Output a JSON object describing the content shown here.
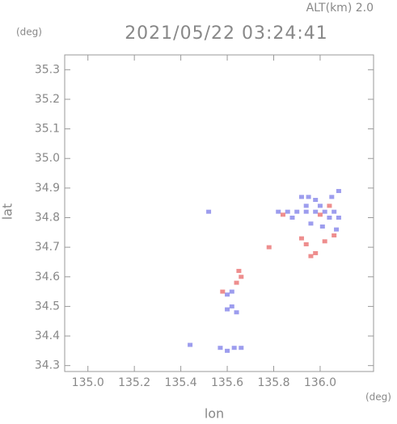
{
  "chart_data": {
    "type": "scatter",
    "title": "2021/05/22 03:24:41",
    "annotation": "ALT(km) 2.0",
    "y_unit": "(deg)",
    "x_unit": "(deg)",
    "xlabel": "lon",
    "ylabel": "lat",
    "xlim": [
      134.9,
      136.23
    ],
    "ylim": [
      34.28,
      35.35
    ],
    "xticks": [
      {
        "value": 135,
        "label": "135.0"
      },
      135.2,
      135.4,
      135.6,
      135.8,
      {
        "value": 136,
        "label": "136.0"
      }
    ],
    "yticks": [
      34.3,
      34.4,
      34.5,
      34.6,
      34.7,
      34.8,
      34.9,
      {
        "value": 35,
        "label": "35.0"
      },
      35.1,
      35.2,
      35.3
    ],
    "series": [
      {
        "color": "#8585ea",
        "x": [
          135.52,
          135.44,
          135.57,
          135.6,
          135.63,
          135.66,
          135.6,
          135.62,
          135.64,
          135.6,
          135.62,
          135.82,
          135.86,
          135.9,
          135.94,
          135.98,
          136.02,
          136.06,
          135.92,
          135.95,
          135.98,
          136.05,
          136.08,
          135.94,
          136.0,
          136.04,
          136.08,
          135.88,
          135.96,
          136.01,
          136.07
        ],
        "y": [
          34.82,
          34.37,
          34.36,
          34.35,
          34.36,
          34.36,
          34.49,
          34.5,
          34.48,
          34.54,
          34.55,
          34.82,
          34.82,
          34.82,
          34.82,
          34.82,
          34.82,
          34.82,
          34.87,
          34.87,
          34.86,
          34.87,
          34.89,
          34.84,
          34.84,
          34.8,
          34.8,
          34.8,
          34.78,
          34.77,
          34.76
        ]
      },
      {
        "color": "#ea7272",
        "x": [
          135.58,
          135.64,
          135.65,
          135.66,
          135.78,
          135.94,
          135.96,
          135.98,
          135.92,
          136.02,
          136.06,
          135.84,
          136.0,
          136.04
        ],
        "y": [
          34.55,
          34.58,
          34.62,
          34.6,
          34.7,
          34.71,
          34.67,
          34.68,
          34.73,
          34.72,
          34.74,
          34.81,
          34.81,
          34.84
        ]
      }
    ]
  }
}
